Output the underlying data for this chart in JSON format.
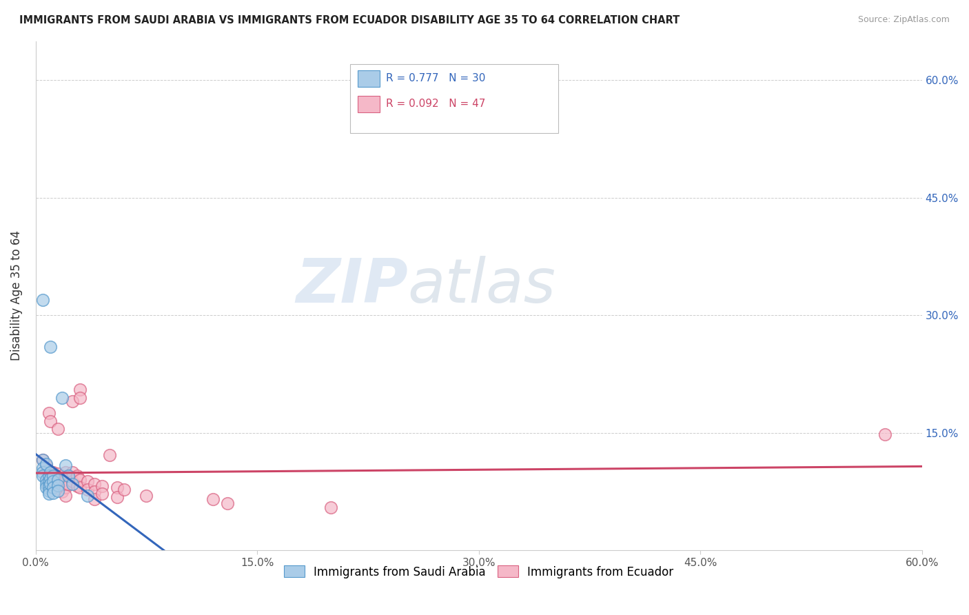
{
  "title": "IMMIGRANTS FROM SAUDI ARABIA VS IMMIGRANTS FROM ECUADOR DISABILITY AGE 35 TO 64 CORRELATION CHART",
  "source": "Source: ZipAtlas.com",
  "ylabel": "Disability Age 35 to 64",
  "xlim": [
    0.0,
    0.6
  ],
  "ylim": [
    0.0,
    0.65
  ],
  "xtick_labels": [
    "0.0%",
    "15.0%",
    "30.0%",
    "45.0%",
    "60.0%"
  ],
  "xtick_positions": [
    0.0,
    0.15,
    0.3,
    0.45,
    0.6
  ],
  "ytick_labels": [
    "15.0%",
    "30.0%",
    "45.0%",
    "60.0%"
  ],
  "ytick_positions": [
    0.15,
    0.3,
    0.45,
    0.6
  ],
  "saudi_color": "#aacce8",
  "saudi_edge_color": "#5599cc",
  "saudi_line_color": "#3366bb",
  "ecuador_color": "#f5b8c8",
  "ecuador_edge_color": "#d96080",
  "ecuador_line_color": "#cc4466",
  "watermark_zip": "ZIP",
  "watermark_atlas": "atlas",
  "saudi_points": [
    [
      0.005,
      0.115
    ],
    [
      0.005,
      0.105
    ],
    [
      0.005,
      0.1
    ],
    [
      0.005,
      0.095
    ],
    [
      0.007,
      0.09
    ],
    [
      0.007,
      0.085
    ],
    [
      0.007,
      0.08
    ],
    [
      0.007,
      0.11
    ],
    [
      0.009,
      0.095
    ],
    [
      0.009,
      0.088
    ],
    [
      0.009,
      0.082
    ],
    [
      0.009,
      0.076
    ],
    [
      0.009,
      0.072
    ],
    [
      0.01,
      0.1
    ],
    [
      0.01,
      0.092
    ],
    [
      0.01,
      0.085
    ],
    [
      0.012,
      0.095
    ],
    [
      0.012,
      0.088
    ],
    [
      0.012,
      0.08
    ],
    [
      0.012,
      0.073
    ],
    [
      0.015,
      0.09
    ],
    [
      0.015,
      0.083
    ],
    [
      0.015,
      0.076
    ],
    [
      0.005,
      0.32
    ],
    [
      0.01,
      0.26
    ],
    [
      0.018,
      0.195
    ],
    [
      0.02,
      0.108
    ],
    [
      0.022,
      0.095
    ],
    [
      0.025,
      0.085
    ],
    [
      0.035,
      0.07
    ]
  ],
  "ecuador_points": [
    [
      0.005,
      0.115
    ],
    [
      0.007,
      0.108
    ],
    [
      0.008,
      0.102
    ],
    [
      0.009,
      0.175
    ],
    [
      0.01,
      0.165
    ],
    [
      0.01,
      0.095
    ],
    [
      0.012,
      0.1
    ],
    [
      0.012,
      0.09
    ],
    [
      0.013,
      0.095
    ],
    [
      0.014,
      0.088
    ],
    [
      0.015,
      0.155
    ],
    [
      0.015,
      0.098
    ],
    [
      0.015,
      0.088
    ],
    [
      0.018,
      0.095
    ],
    [
      0.018,
      0.085
    ],
    [
      0.018,
      0.075
    ],
    [
      0.02,
      0.1
    ],
    [
      0.02,
      0.09
    ],
    [
      0.02,
      0.08
    ],
    [
      0.02,
      0.07
    ],
    [
      0.022,
      0.095
    ],
    [
      0.022,
      0.085
    ],
    [
      0.025,
      0.19
    ],
    [
      0.025,
      0.1
    ],
    [
      0.025,
      0.088
    ],
    [
      0.028,
      0.095
    ],
    [
      0.028,
      0.082
    ],
    [
      0.03,
      0.205
    ],
    [
      0.03,
      0.195
    ],
    [
      0.03,
      0.09
    ],
    [
      0.03,
      0.08
    ],
    [
      0.035,
      0.088
    ],
    [
      0.035,
      0.078
    ],
    [
      0.04,
      0.085
    ],
    [
      0.04,
      0.075
    ],
    [
      0.04,
      0.065
    ],
    [
      0.045,
      0.082
    ],
    [
      0.045,
      0.072
    ],
    [
      0.05,
      0.122
    ],
    [
      0.055,
      0.08
    ],
    [
      0.055,
      0.068
    ],
    [
      0.06,
      0.078
    ],
    [
      0.075,
      0.07
    ],
    [
      0.12,
      0.065
    ],
    [
      0.13,
      0.06
    ],
    [
      0.2,
      0.055
    ],
    [
      0.575,
      0.148
    ]
  ]
}
